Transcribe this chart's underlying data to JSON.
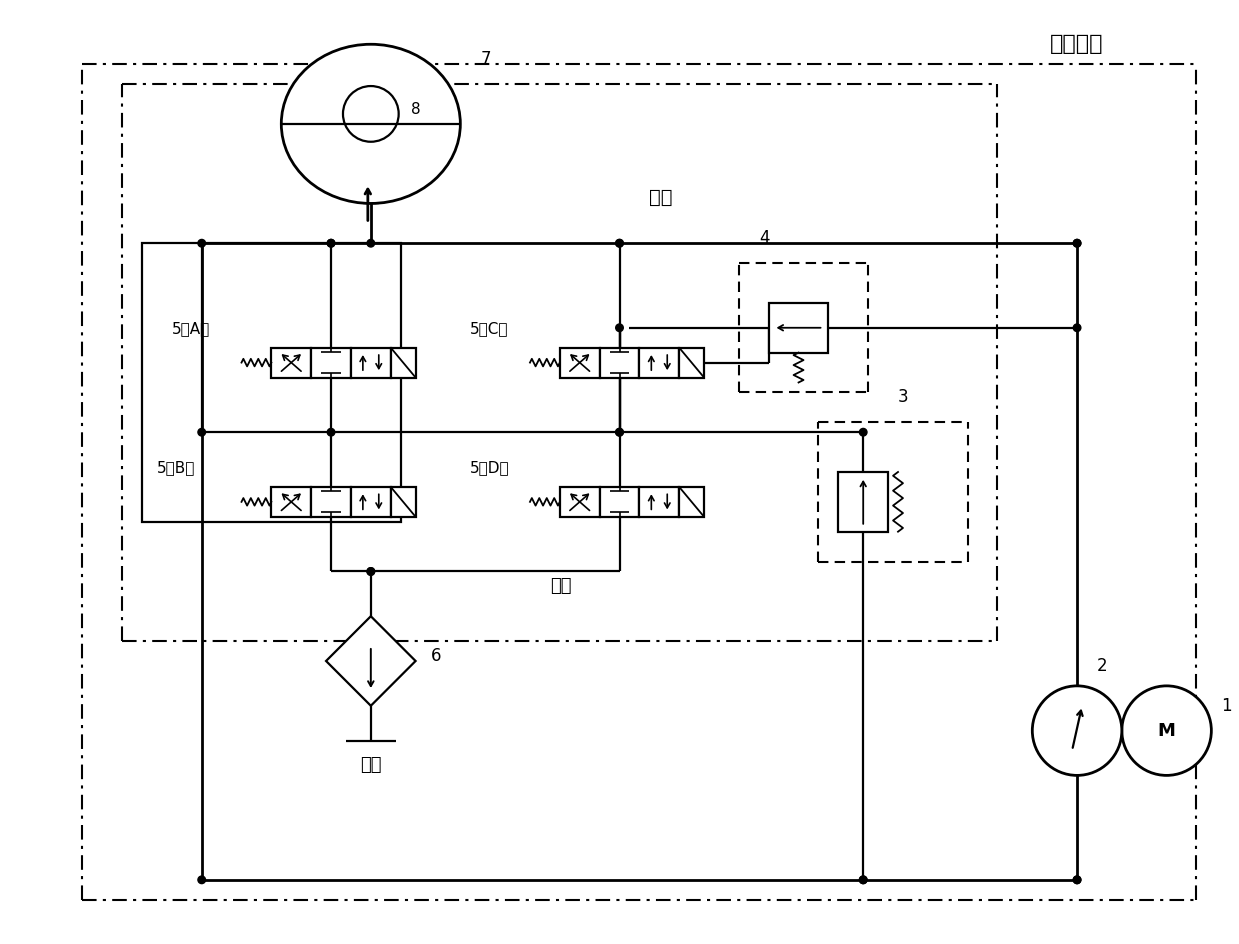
{
  "bg": "#ffffff",
  "labels": {
    "ctrl": "控制阀组",
    "inject": "注水",
    "drain": "排水",
    "ocean": "海洋",
    "n1": "1",
    "n2": "2",
    "n3": "3",
    "n4": "4",
    "n5A": "5（A）",
    "n5B": "5（B）",
    "n5C": "5（C）",
    "n5D": "5（D）",
    "n6": "6",
    "n7": "7",
    "n8": "8"
  },
  "xlim": [
    0,
    124
  ],
  "ylim": [
    0,
    94
  ]
}
